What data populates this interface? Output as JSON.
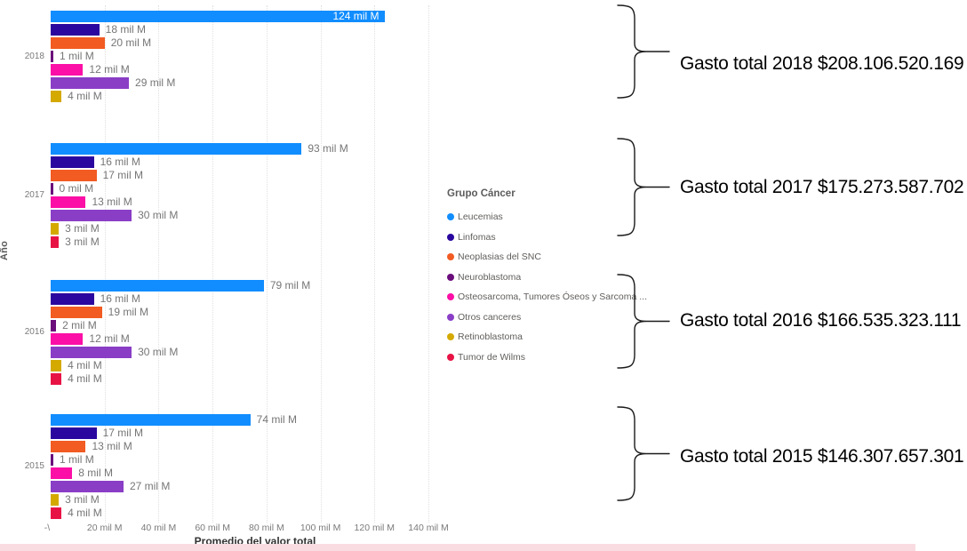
{
  "y_axis_title": "Año",
  "x_axis_title": "Promedio del valor total",
  "legend": {
    "title": "Grupo Cáncer"
  },
  "chart_data": {
    "type": "bar",
    "orientation": "horizontal",
    "value_axis_label": "Promedio del valor total",
    "category_axis_label": "Año",
    "value_unit_suffix": " mil M",
    "xlim": [
      0,
      140
    ],
    "grid": true,
    "legend_position": "middle-right",
    "legend_title": "Grupo Cáncer",
    "x_ticks": [
      {
        "label": "-\\",
        "value": 0
      },
      {
        "label": "20 mil M",
        "value": 20
      },
      {
        "label": "40 mil M",
        "value": 40
      },
      {
        "label": "60 mil M",
        "value": 60
      },
      {
        "label": "80 mil M",
        "value": 80
      },
      {
        "label": "100 mil M",
        "value": 100
      },
      {
        "label": "120 mil M",
        "value": 120
      },
      {
        "label": "140 mil M",
        "value": 140
      }
    ],
    "series": [
      {
        "name": "Leucemias",
        "color": "#118DFF"
      },
      {
        "name": "Linfomas",
        "color": "#2A079E"
      },
      {
        "name": "Neoplasias del SNC",
        "color": "#F25B22"
      },
      {
        "name": "Neuroblastoma",
        "color": "#6B0D7B"
      },
      {
        "name": "Osteosarcoma, Tumores Óseos y Sarcoma ...",
        "color": "#FB0FA6"
      },
      {
        "name": "Otros canceres",
        "color": "#8A3EC6"
      },
      {
        "name": "Retinoblastoma",
        "color": "#D4A900"
      },
      {
        "name": "Tumor de Wilms",
        "color": "#E81345"
      }
    ],
    "groups": [
      {
        "year": "2018",
        "bars": [
          {
            "series": "Leucemias",
            "value": 124,
            "label": "124 mil M",
            "label_inside": true
          },
          {
            "series": "Linfomas",
            "value": 18,
            "label": "18 mil M"
          },
          {
            "series": "Neoplasias del SNC",
            "value": 20,
            "label": "20 mil M"
          },
          {
            "series": "Neuroblastoma",
            "value": 1,
            "label": "1 mil M"
          },
          {
            "series": "Osteosarcoma, Tumores Óseos y Sarcoma ...",
            "value": 12,
            "label": "12 mil M"
          },
          {
            "series": "Otros canceres",
            "value": 29,
            "label": "29 mil M"
          },
          {
            "series": "Retinoblastoma",
            "value": 4,
            "label": "4 mil M"
          }
        ]
      },
      {
        "year": "2017",
        "bars": [
          {
            "series": "Leucemias",
            "value": 93,
            "label": "93 mil M"
          },
          {
            "series": "Linfomas",
            "value": 16,
            "label": "16 mil M"
          },
          {
            "series": "Neoplasias del SNC",
            "value": 17,
            "label": "17 mil M"
          },
          {
            "series": "Neuroblastoma",
            "value": 0,
            "label": "0 mil M"
          },
          {
            "series": "Osteosarcoma, Tumores Óseos y Sarcoma ...",
            "value": 13,
            "label": "13 mil M"
          },
          {
            "series": "Otros canceres",
            "value": 30,
            "label": "30 mil M"
          },
          {
            "series": "Retinoblastoma",
            "value": 3,
            "label": "3 mil M"
          },
          {
            "series": "Tumor de Wilms",
            "value": 3,
            "label": "3 mil M"
          }
        ]
      },
      {
        "year": "2016",
        "bars": [
          {
            "series": "Leucemias",
            "value": 79,
            "label": "79 mil M"
          },
          {
            "series": "Linfomas",
            "value": 16,
            "label": "16 mil M"
          },
          {
            "series": "Neoplasias del SNC",
            "value": 19,
            "label": "19 mil M"
          },
          {
            "series": "Neuroblastoma",
            "value": 2,
            "label": "2 mil M"
          },
          {
            "series": "Osteosarcoma, Tumores Óseos y Sarcoma ...",
            "value": 12,
            "label": "12 mil M"
          },
          {
            "series": "Otros canceres",
            "value": 30,
            "label": "30 mil M"
          },
          {
            "series": "Retinoblastoma",
            "value": 4,
            "label": "4 mil M"
          },
          {
            "series": "Tumor de Wilms",
            "value": 4,
            "label": "4 mil M"
          }
        ]
      },
      {
        "year": "2015",
        "bars": [
          {
            "series": "Leucemias",
            "value": 74,
            "label": "74 mil M"
          },
          {
            "series": "Linfomas",
            "value": 17,
            "label": "17 mil M"
          },
          {
            "series": "Neoplasias del SNC",
            "value": 13,
            "label": "13 mil M"
          },
          {
            "series": "Neuroblastoma",
            "value": 1,
            "label": "1 mil M"
          },
          {
            "series": "Osteosarcoma, Tumores Óseos y Sarcoma ...",
            "value": 8,
            "label": "8 mil M"
          },
          {
            "series": "Otros canceres",
            "value": 27,
            "label": "27 mil M"
          },
          {
            "series": "Retinoblastoma",
            "value": 3,
            "label": "3 mil M"
          },
          {
            "series": "Tumor de Wilms",
            "value": 4,
            "label": "4 mil M"
          }
        ]
      }
    ],
    "annotations": [
      {
        "year": "2018",
        "text": "Gasto total 2018 $208.106.520.169"
      },
      {
        "year": "2017",
        "text": "Gasto total 2017 $175.273.587.702"
      },
      {
        "year": "2016",
        "text": "Gasto total 2016 $166.535.323.111"
      },
      {
        "year": "2015",
        "text": "Gasto total 2015 $146.307.657.301"
      }
    ]
  }
}
